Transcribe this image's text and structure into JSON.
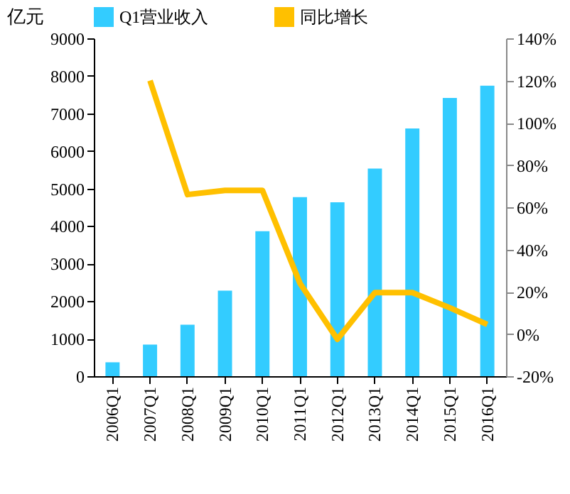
{
  "chart_data": {
    "type": "bar",
    "ylabel": "亿元",
    "legend": "top",
    "grid": false,
    "categories": [
      "2006Q1",
      "2007Q1",
      "2008Q1",
      "2009Q1",
      "2010Q1",
      "2011Q1",
      "2012Q1",
      "2013Q1",
      "2014Q1",
      "2015Q1",
      "2016Q1"
    ],
    "series": [
      {
        "name": "Q1营业收入",
        "color": "#33ccff",
        "values": [
          370,
          840,
          1370,
          2280,
          3860,
          4770,
          4630,
          5530,
          6600,
          7410,
          7740
        ]
      },
      {
        "name": "同比增长",
        "type": "line",
        "axis": "y2",
        "color": "#ffc000",
        "values": [
          null,
          120,
          66,
          68,
          68,
          24,
          -2.5,
          19.6,
          19.6,
          12.4,
          4.5
        ]
      }
    ],
    "ylim": [
      0,
      9000
    ],
    "yticks": [
      0,
      1000,
      2000,
      3000,
      4000,
      5000,
      6000,
      7000,
      8000,
      9000
    ],
    "y2lim": [
      -20,
      140
    ],
    "y2ticks": [
      {
        "value": -20,
        "label": "-20%"
      },
      {
        "value": 0,
        "label": "0%"
      },
      {
        "value": 20,
        "label": "20%"
      },
      {
        "value": 40,
        "label": "40%"
      },
      {
        "value": 60,
        "label": "60%"
      },
      {
        "value": 80,
        "label": "80%"
      },
      {
        "value": 100,
        "label": "100%"
      },
      {
        "value": 120,
        "label": "120%"
      },
      {
        "value": 140,
        "label": "140%"
      }
    ]
  }
}
